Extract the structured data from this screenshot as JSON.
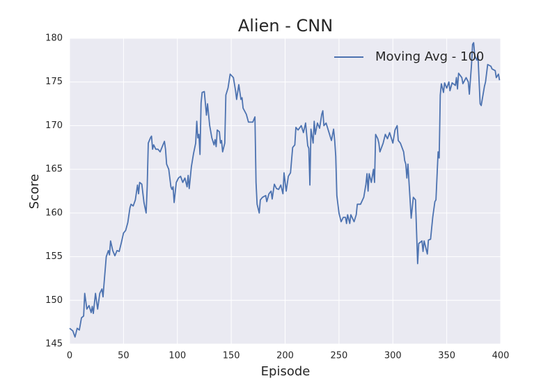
{
  "chart_data": {
    "type": "line",
    "title": "Alien - CNN",
    "x_label": "Episode",
    "y_label": "Score",
    "x": [
      0,
      3,
      5,
      7,
      9,
      11,
      13,
      14,
      16,
      18,
      20,
      21,
      22,
      24,
      26,
      28,
      30,
      31,
      32,
      34,
      36,
      37,
      38,
      40,
      42,
      44,
      46,
      48,
      50,
      52,
      54,
      56,
      57,
      59,
      61,
      63,
      64,
      65,
      67,
      69,
      71,
      72,
      73,
      75,
      76,
      77,
      78,
      80,
      82,
      84,
      86,
      88,
      89,
      90,
      92,
      94,
      95,
      96,
      97,
      99,
      101,
      103,
      105,
      107,
      109,
      110,
      111,
      113,
      115,
      117,
      118,
      119,
      120,
      121,
      122,
      123,
      125,
      127,
      128,
      130,
      132,
      134,
      135,
      136,
      137,
      139,
      140,
      141,
      142,
      144,
      145,
      147,
      149,
      152,
      154,
      155,
      157,
      159,
      160,
      161,
      164,
      166,
      170,
      172,
      173,
      174,
      176,
      177,
      179,
      182,
      183,
      185,
      187,
      188,
      190,
      192,
      194,
      196,
      198,
      199,
      200,
      201,
      203,
      205,
      207,
      209,
      210,
      212,
      215,
      217,
      219,
      221,
      222,
      223,
      224,
      226,
      227,
      228,
      230,
      232,
      234,
      235,
      236,
      238,
      240,
      243,
      245,
      246,
      247,
      248,
      250,
      252,
      254,
      256,
      257,
      258,
      260,
      261,
      264,
      266,
      267,
      270,
      273,
      275,
      276,
      277,
      278,
      280,
      282,
      283,
      284,
      286,
      287,
      288,
      291,
      293,
      295,
      297,
      300,
      302,
      304,
      305,
      307,
      310,
      311,
      312,
      313,
      314,
      315,
      316,
      317,
      319,
      321,
      323,
      324,
      327,
      328,
      329,
      332,
      333,
      335,
      337,
      339,
      340,
      342,
      343,
      344,
      345,
      347,
      348,
      350,
      352,
      353,
      355,
      358,
      359,
      360,
      361,
      364,
      365,
      368,
      370,
      371,
      373,
      374,
      375,
      376,
      378,
      379,
      381,
      382,
      385,
      386,
      388,
      391,
      392,
      395,
      396,
      398,
      399
    ],
    "series": [
      {
        "name": "Moving Avg - 100",
        "color": "#4c72b0",
        "values": [
          146.8,
          146.5,
          145.8,
          146.8,
          146.6,
          148.0,
          148.2,
          150.8,
          149.0,
          149.4,
          148.6,
          149.3,
          148.5,
          150.8,
          149.0,
          150.8,
          151.3,
          150.4,
          152.0,
          155.0,
          155.7,
          155.2,
          156.8,
          155.7,
          155.1,
          155.7,
          155.6,
          156.6,
          157.7,
          158.0,
          158.9,
          160.6,
          161.0,
          160.8,
          161.5,
          163.2,
          162.2,
          163.5,
          163.3,
          161.2,
          160.0,
          163.0,
          168.0,
          168.6,
          168.8,
          167.3,
          167.8,
          167.3,
          167.3,
          167.0,
          167.6,
          168.2,
          167.3,
          165.6,
          165.0,
          163.0,
          162.7,
          163.0,
          161.2,
          163.5,
          164.0,
          164.2,
          163.5,
          164.0,
          163.0,
          164.3,
          162.8,
          165.3,
          166.8,
          168.0,
          170.5,
          168.6,
          169.0,
          166.7,
          172.6,
          173.8,
          173.9,
          171.2,
          172.5,
          170.0,
          168.6,
          167.8,
          168.4,
          167.6,
          169.5,
          169.3,
          168.0,
          168.3,
          167.0,
          168.0,
          173.5,
          174.3,
          175.9,
          175.5,
          174.0,
          173.0,
          174.7,
          173.0,
          173.2,
          172.0,
          171.3,
          170.4,
          170.4,
          171.0,
          163.5,
          161.0,
          160.0,
          161.5,
          161.8,
          162.0,
          161.3,
          162.2,
          162.5,
          161.6,
          163.3,
          162.8,
          162.7,
          163.2,
          162.2,
          164.6,
          163.5,
          162.5,
          164.2,
          164.6,
          167.5,
          167.8,
          169.8,
          169.5,
          170.0,
          169.2,
          170.3,
          167.7,
          167.4,
          163.2,
          169.6,
          168.0,
          170.5,
          169.0,
          170.3,
          169.7,
          171.3,
          171.7,
          170.0,
          170.3,
          169.5,
          168.3,
          169.6,
          168.3,
          166.5,
          162.0,
          160.0,
          159.0,
          159.5,
          159.5,
          158.8,
          159.8,
          158.8,
          159.8,
          159.0,
          159.8,
          161.0,
          161.0,
          161.8,
          163.3,
          164.5,
          162.5,
          164.5,
          163.5,
          165.0,
          163.5,
          169.0,
          168.5,
          168.0,
          167.0,
          168.0,
          169.0,
          168.5,
          169.2,
          168.0,
          169.5,
          170.0,
          168.3,
          168.0,
          167.0,
          166.0,
          165.6,
          164.0,
          165.6,
          163.5,
          161.5,
          159.4,
          161.8,
          161.5,
          154.2,
          156.5,
          156.8,
          155.6,
          156.8,
          155.3,
          156.9,
          157.0,
          159.5,
          161.3,
          161.5,
          167.0,
          166.3,
          173.5,
          174.8,
          173.8,
          174.9,
          174.3,
          175.0,
          174.0,
          174.9,
          174.6,
          175.5,
          174.2,
          176.0,
          175.5,
          174.8,
          175.5,
          175.0,
          173.6,
          177.0,
          179.3,
          179.5,
          178.0,
          177.5,
          178.0,
          172.5,
          172.3,
          174.5,
          175.0,
          177.0,
          176.8,
          176.5,
          176.3,
          175.5,
          175.9,
          175.2
        ]
      }
    ],
    "xlim": [
      0,
      400
    ],
    "ylim": [
      145,
      180
    ],
    "xticks": [
      0,
      50,
      100,
      150,
      200,
      250,
      300,
      350,
      400
    ],
    "yticks": [
      145,
      150,
      155,
      160,
      165,
      170,
      175,
      180
    ],
    "grid": true,
    "legend": "upper right"
  }
}
